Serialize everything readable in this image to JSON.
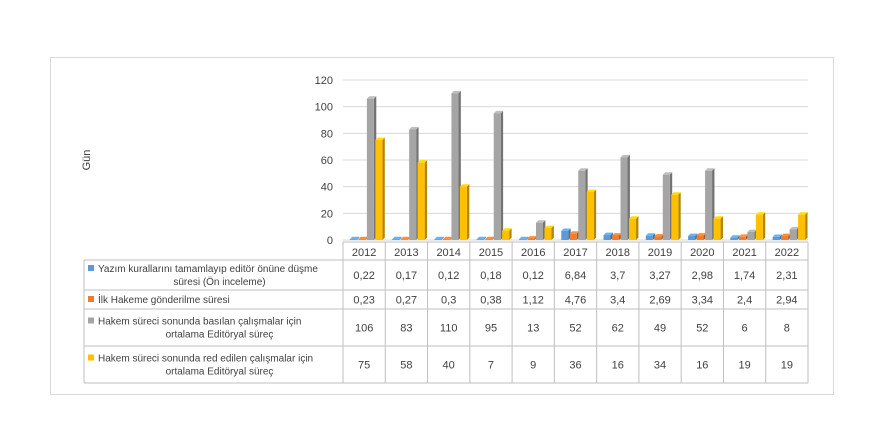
{
  "chart_data": {
    "type": "bar",
    "ylabel": "Gün",
    "ylim": [
      0,
      120
    ],
    "yticks": [
      0,
      20,
      40,
      60,
      80,
      100,
      120
    ],
    "grid": true,
    "legend": "data-table",
    "categories": [
      "2012",
      "2013",
      "2014",
      "2015",
      "2016",
      "2017",
      "2018",
      "2019",
      "2020",
      "2021",
      "2022"
    ],
    "series": [
      {
        "name": "Yazım kurallarını tamamlayıp editör önüne düşme süresi (Ön inceleme)",
        "name_lines": [
          "Yazım kurallarını tamamlayıp editör önüne düşme",
          "süresi (Ön inceleme)"
        ],
        "color": "#5b9bd5",
        "values": [
          0.22,
          0.17,
          0.12,
          0.18,
          0.12,
          6.84,
          3.7,
          3.27,
          2.98,
          1.74,
          2.31
        ],
        "labels": [
          "0,22",
          "0,17",
          "0,12",
          "0,18",
          "0,12",
          "6,84",
          "3,7",
          "3,27",
          "2,98",
          "1,74",
          "2,31"
        ]
      },
      {
        "name": "İlk Hakeme gönderilme süresi",
        "name_lines": [
          "İlk Hakeme gönderilme süresi"
        ],
        "color": "#ed7d31",
        "values": [
          0.23,
          0.27,
          0.3,
          0.38,
          1.12,
          4.76,
          3.4,
          2.69,
          3.34,
          2.4,
          2.94
        ],
        "labels": [
          "0,23",
          "0,27",
          "0,3",
          "0,38",
          "1,12",
          "4,76",
          "3,4",
          "2,69",
          "3,34",
          "2,4",
          "2,94"
        ]
      },
      {
        "name": "Hakem süreci sonunda basılan çalışmalar için ortalama Editöryal süreç",
        "name_lines": [
          "Hakem süreci sonunda basılan çalışmalar için",
          "ortalama Editöryal süreç"
        ],
        "color": "#a5a5a5",
        "values": [
          106,
          83,
          110,
          95,
          13,
          52,
          62,
          49,
          52,
          6,
          8
        ],
        "labels": [
          "106",
          "83",
          "110",
          "95",
          "13",
          "52",
          "62",
          "49",
          "52",
          "6",
          "8"
        ]
      },
      {
        "name": "Hakem süreci sonunda red edilen çalışmalar için ortalama Editöryal süreç",
        "name_lines": [
          "Hakem süreci sonunda red edilen çalışmalar için",
          "ortalama Editöryal süreç"
        ],
        "color": "#ffc000",
        "values": [
          75,
          58,
          40,
          7,
          9,
          36,
          16,
          34,
          16,
          19,
          19
        ],
        "labels": [
          "75",
          "58",
          "40",
          "7",
          "9",
          "36",
          "16",
          "34",
          "16",
          "19",
          "19"
        ]
      }
    ]
  }
}
